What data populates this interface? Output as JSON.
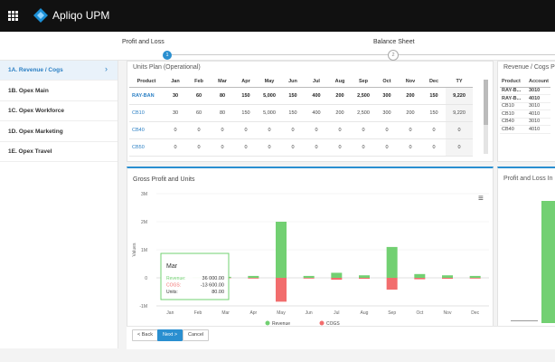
{
  "header": {
    "app_name": "Apliqo UPM"
  },
  "steps": [
    {
      "number": "1",
      "label": "Profit and Loss"
    },
    {
      "number": "2",
      "label": "Balance Sheet"
    }
  ],
  "sidebar": [
    "1A. Revenue / Cogs",
    "1B. Opex Main",
    "1C. Opex Workforce",
    "1D. Opex Marketing",
    "1E. Opex Travel"
  ],
  "units_plan": {
    "title": "Units Plan (Operational)",
    "columns": [
      "Product",
      "Jan",
      "Feb",
      "Mar",
      "Apr",
      "May",
      "Jun",
      "Jul",
      "Aug",
      "Sep",
      "Oct",
      "Nov",
      "Dec",
      "TY"
    ],
    "rows": [
      [
        "RAY-BAN",
        "30",
        "60",
        "80",
        "150",
        "5,000",
        "150",
        "400",
        "200",
        "2,500",
        "300",
        "200",
        "150",
        "9,220"
      ],
      [
        "CB10",
        "30",
        "60",
        "80",
        "150",
        "5,000",
        "150",
        "400",
        "200",
        "2,500",
        "300",
        "200",
        "150",
        "9,220"
      ],
      [
        "CB40",
        "0",
        "0",
        "0",
        "0",
        "0",
        "0",
        "0",
        "0",
        "0",
        "0",
        "0",
        "0",
        "0"
      ],
      [
        "CB50",
        "0",
        "0",
        "0",
        "0",
        "0",
        "0",
        "0",
        "0",
        "0",
        "0",
        "0",
        "0",
        "0"
      ]
    ]
  },
  "revenue_panel": {
    "title": "Revenue / Cogs P",
    "columns": [
      "Product",
      "Account"
    ],
    "rows": [
      [
        "RAY-B...",
        "3010"
      ],
      [
        "RAY-B...",
        "4010"
      ],
      [
        "CB10",
        "3010"
      ],
      [
        "CB10",
        "4010"
      ],
      [
        "CB40",
        "3010"
      ],
      [
        "CB40",
        "4010"
      ]
    ]
  },
  "chart_data": {
    "type": "bar",
    "title": "Gross Profit and Units",
    "y_label": "Values",
    "categories": [
      "Jan",
      "Feb",
      "Mar",
      "Apr",
      "May",
      "Jun",
      "Jul",
      "Aug",
      "Sep",
      "Oct",
      "Nov",
      "Dec"
    ],
    "series": [
      {
        "name": "Revenue",
        "color": "#72d072",
        "values": [
          13500,
          27000,
          36000,
          67500,
          2000000,
          67500,
          180000,
          90000,
          1100000,
          135000,
          90000,
          67500
        ]
      },
      {
        "name": "COGS",
        "color": "#f26d6d",
        "values": [
          -5100,
          -10200,
          -13600,
          -25500,
          -850000,
          -25500,
          -68000,
          -34000,
          -420000,
          -51000,
          -34000,
          -25500
        ]
      }
    ],
    "ylim": [
      -1000000,
      3000000
    ],
    "yticks": [
      {
        "value": -1000000,
        "label": "-1M"
      },
      0,
      {
        "value": 1000000,
        "label": "1M"
      },
      {
        "value": 2000000,
        "label": "2M"
      },
      {
        "value": 3000000,
        "label": "3M"
      }
    ],
    "tooltip": {
      "title": "Mar",
      "lines": [
        [
          "Revenue:",
          "36 000.00"
        ],
        [
          "COGS:",
          "-13 600.00"
        ],
        [
          "Units:",
          "80.00"
        ]
      ]
    }
  },
  "side_chart": {
    "title": "Profit and Loss In"
  },
  "buttons": [
    "< Back",
    "Next >",
    "Cancel"
  ]
}
